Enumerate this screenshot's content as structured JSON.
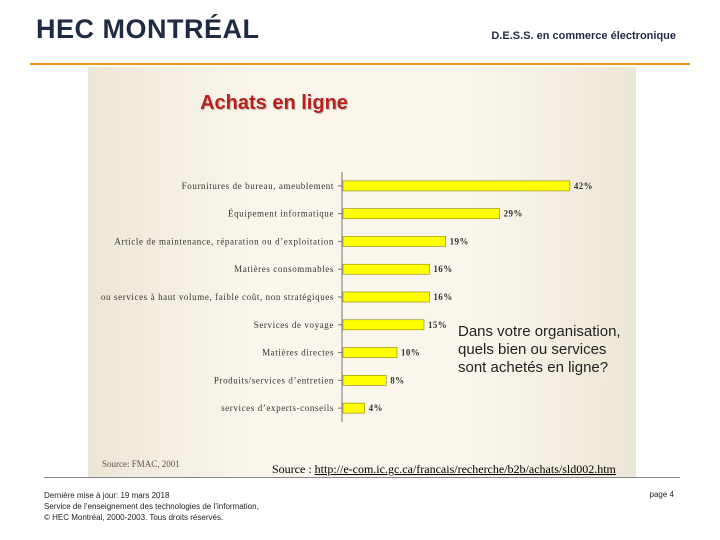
{
  "header": {
    "logo": "HEC MONTRÉAL",
    "program": "D.E.S.S. en commerce électronique"
  },
  "chart_data": {
    "type": "bar",
    "orientation": "horizontal",
    "title": "Achats en ligne",
    "categories": [
      "Fournitures de bureau, ameublement",
      "Équipement informatique",
      "Article de maintenance, réparation ou d’exploitation",
      "Matières consommables",
      "ou services à haut volume, faible coût, non stratégiques",
      "Services de voyage",
      "Matières directes",
      "Produits/services d’entretien",
      "services d’experts-conseils"
    ],
    "values": [
      42,
      29,
      19,
      16,
      16,
      15,
      10,
      8,
      4
    ],
    "value_labels": [
      "42%",
      "29%",
      "19%",
      "16%",
      "16%",
      "15%",
      "10%",
      "8%",
      "4%"
    ],
    "xlim": [
      0,
      45
    ],
    "bar_color": "#ffff00",
    "bar_outline": "#888800",
    "note": "Dans votre organisation, quels bien ou services sont achetés en ligne?",
    "chart_source": "Source: FMAC, 2001"
  },
  "source": {
    "prefix": "Source : ",
    "url": "http://e-com.ic.gc.ca/francais/recherche/b2b/achats/sld002.htm"
  },
  "footer": {
    "line1": "Dernière mise à jour: 19 mars 2018",
    "line2": "Service de l’enseignement des technologies de l’information,",
    "line3": "© HEC Montréal, 2000-2003. Tous droits réservés.",
    "page": "page 4"
  }
}
